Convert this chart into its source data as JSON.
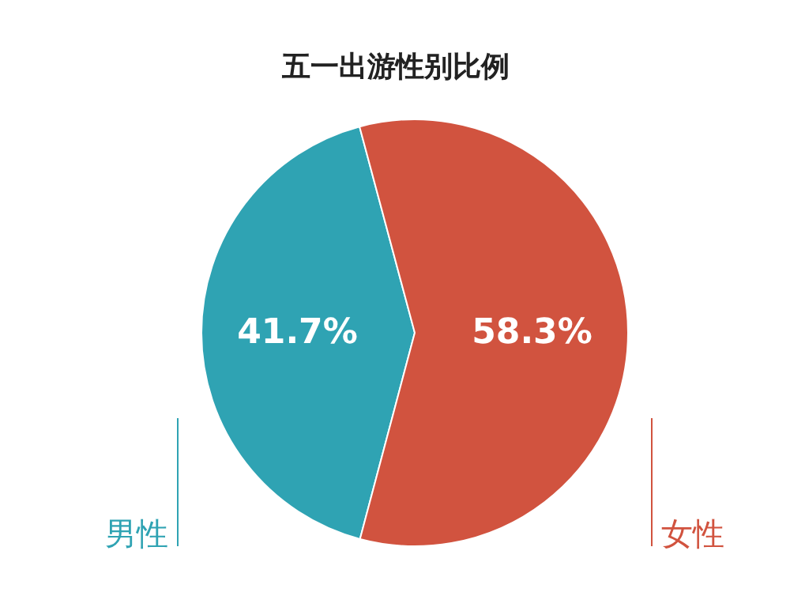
{
  "chart_data": {
    "type": "pie",
    "title": "五一出游性别比例",
    "categories": [
      "男性",
      "女性"
    ],
    "values": [
      41.7,
      58.3
    ],
    "colors": [
      "#2fa3b3",
      "#d1533f"
    ],
    "value_labels": [
      "41.7%",
      "58.3%"
    ]
  }
}
